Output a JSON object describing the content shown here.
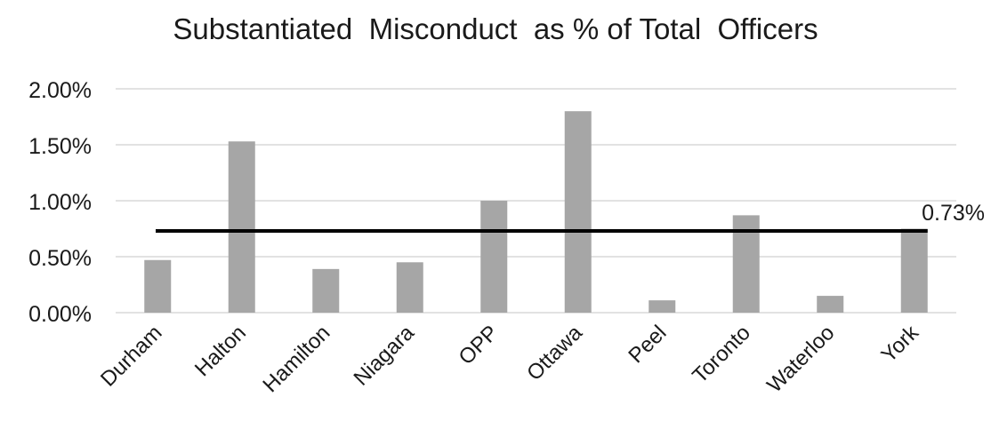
{
  "chart_data": {
    "type": "bar",
    "title": "Substantiated  Misconduct  as % of Total  Officers",
    "xlabel": "",
    "ylabel": "",
    "categories": [
      "Durham",
      "Halton",
      "Hamilton",
      "Niagara",
      "OPP",
      "Ottawa",
      "Peel",
      "Toronto",
      "Waterloo",
      "York"
    ],
    "values": [
      0.47,
      1.53,
      0.39,
      0.45,
      1.0,
      1.8,
      0.11,
      0.87,
      0.15,
      0.75
    ],
    "ylim": [
      0,
      2
    ],
    "yticks": [
      0,
      0.5,
      1.0,
      1.5,
      2.0
    ],
    "ytick_labels": [
      "0.00%",
      "0.50%",
      "1.00%",
      "1.50%",
      "2.00%"
    ],
    "grid": true,
    "reference_line": {
      "value": 0.73,
      "label": "0.73%"
    },
    "colors": {
      "bar": "#a6a6a6",
      "grid": "#d9d9d9",
      "reference_line": "#000000",
      "text": "#1a1a1a"
    }
  }
}
